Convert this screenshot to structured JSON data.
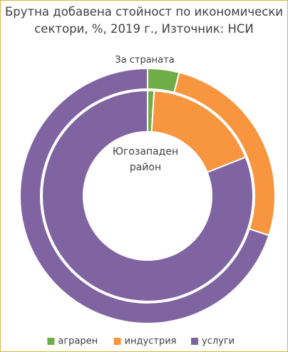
{
  "chart_data": {
    "type": "donut",
    "title": "Брутна добавена стойност по икономически сектори, %, 2019 г., Източник: НСИ",
    "categories": [
      "аграрен",
      "индустрия",
      "услуги"
    ],
    "colors": [
      "#70ad47",
      "#f7963f",
      "#8064a2"
    ],
    "series": [
      {
        "name": "За страната",
        "values": [
          4,
          26,
          70
        ]
      },
      {
        "name": "Югозападен район",
        "values": [
          1,
          18,
          81
        ]
      }
    ],
    "legend": "bottom"
  }
}
